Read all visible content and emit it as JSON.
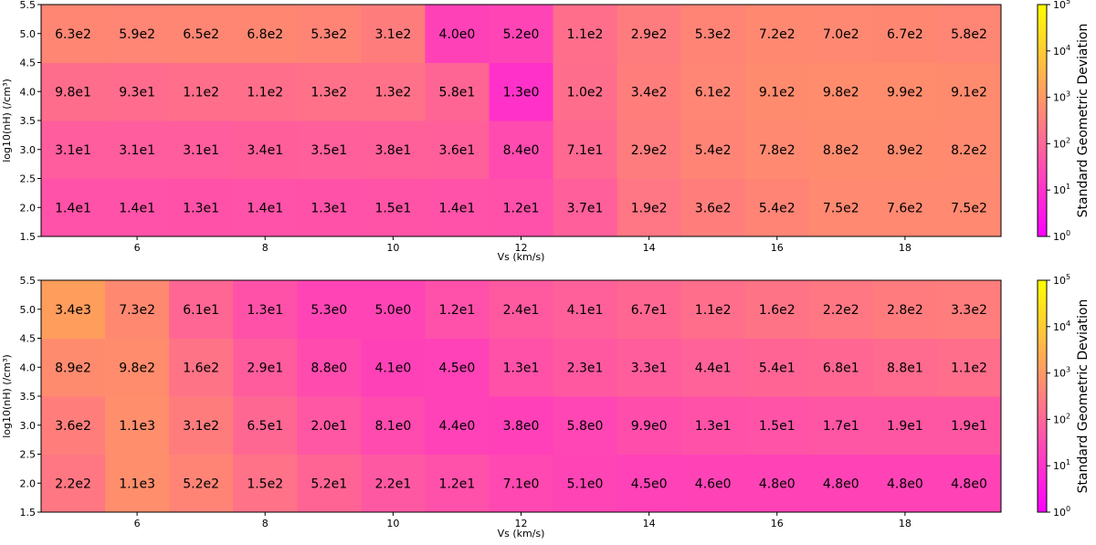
{
  "chart_data": [
    {
      "type": "heatmap",
      "xlabel": "Vs (km/s)",
      "ylabel": "log10(nH) (/cm³)",
      "x": [
        5,
        6,
        7,
        8,
        9,
        10,
        11,
        12,
        13,
        14,
        15,
        16,
        17,
        18,
        19
      ],
      "y": [
        2.0,
        3.0,
        4.0,
        5.0
      ],
      "xticks": [
        "6",
        "8",
        "10",
        "12",
        "14",
        "16",
        "18"
      ],
      "xtick_values": [
        6,
        8,
        10,
        12,
        14,
        16,
        18
      ],
      "yticks": [
        "1.5",
        "2.0",
        "2.5",
        "3.0",
        "3.5",
        "4.0",
        "4.5",
        "5.0",
        "5.5"
      ],
      "ytick_values": [
        1.5,
        2.0,
        2.5,
        3.0,
        3.5,
        4.0,
        4.5,
        5.0,
        5.5
      ],
      "xlim": [
        4.5,
        19.5
      ],
      "ylim": [
        1.5,
        5.5
      ],
      "labels": [
        [
          "1.4e1",
          "1.4e1",
          "1.3e1",
          "1.4e1",
          "1.3e1",
          "1.5e1",
          "1.4e1",
          "1.2e1",
          "3.7e1",
          "1.9e2",
          "3.6e2",
          "5.4e2",
          "7.5e2",
          "7.6e2",
          "7.5e2"
        ],
        [
          "3.1e1",
          "3.1e1",
          "3.1e1",
          "3.4e1",
          "3.5e1",
          "3.8e1",
          "3.6e1",
          "8.4e0",
          "7.1e1",
          "2.9e2",
          "5.4e2",
          "7.8e2",
          "8.8e2",
          "8.9e2",
          "8.2e2"
        ],
        [
          "9.8e1",
          "9.3e1",
          "1.1e2",
          "1.1e2",
          "1.3e2",
          "1.3e2",
          "5.8e1",
          "1.3e0",
          "1.0e2",
          "3.4e2",
          "6.1e2",
          "9.1e2",
          "9.8e2",
          "9.9e2",
          "9.1e2"
        ],
        [
          "6.3e2",
          "5.9e2",
          "6.5e2",
          "6.8e2",
          "5.3e2",
          "3.1e2",
          "4.0e0",
          "5.2e0",
          "1.1e2",
          "2.9e2",
          "5.3e2",
          "7.2e2",
          "7.0e2",
          "6.7e2",
          "5.8e2"
        ]
      ],
      "colorbar": {
        "label": "Standard Geometric Deviation",
        "scale": "log",
        "range": [
          1,
          100000
        ],
        "ticks": [
          "10",
          "10",
          "10",
          "10",
          "10",
          "10"
        ],
        "exponents": [
          "0",
          "1",
          "2",
          "3",
          "4",
          "5"
        ],
        "colormap": "spring",
        "colors": [
          "#ff00ff",
          "#ffff00"
        ]
      }
    },
    {
      "type": "heatmap",
      "xlabel": "Vs (km/s)",
      "ylabel": "log10(nH) (/cm³)",
      "x": [
        5,
        6,
        7,
        8,
        9,
        10,
        11,
        12,
        13,
        14,
        15,
        16,
        17,
        18,
        19
      ],
      "y": [
        2.0,
        3.0,
        4.0,
        5.0
      ],
      "xticks": [
        "6",
        "8",
        "10",
        "12",
        "14",
        "16",
        "18"
      ],
      "xtick_values": [
        6,
        8,
        10,
        12,
        14,
        16,
        18
      ],
      "yticks": [
        "1.5",
        "2.0",
        "2.5",
        "3.0",
        "3.5",
        "4.0",
        "4.5",
        "5.0",
        "5.5"
      ],
      "ytick_values": [
        1.5,
        2.0,
        2.5,
        3.0,
        3.5,
        4.0,
        4.5,
        5.0,
        5.5
      ],
      "xlim": [
        4.5,
        19.5
      ],
      "ylim": [
        1.5,
        5.5
      ],
      "labels": [
        [
          "2.2e2",
          "1.1e3",
          "5.2e2",
          "1.5e2",
          "5.2e1",
          "2.2e1",
          "1.2e1",
          "7.1e0",
          "5.1e0",
          "4.5e0",
          "4.6e0",
          "4.8e0",
          "4.8e0",
          "4.8e0",
          "4.8e0"
        ],
        [
          "3.6e2",
          "1.1e3",
          "3.1e2",
          "6.5e1",
          "2.0e1",
          "8.1e0",
          "4.4e0",
          "3.8e0",
          "5.8e0",
          "9.9e0",
          "1.3e1",
          "1.5e1",
          "1.7e1",
          "1.9e1",
          "1.9e1"
        ],
        [
          "8.9e2",
          "9.8e2",
          "1.6e2",
          "2.9e1",
          "8.8e0",
          "4.1e0",
          "4.5e0",
          "1.3e1",
          "2.3e1",
          "3.3e1",
          "4.4e1",
          "5.4e1",
          "6.8e1",
          "8.8e1",
          "1.1e2"
        ],
        [
          "3.4e3",
          "7.3e2",
          "6.1e1",
          "1.3e1",
          "5.3e0",
          "5.0e0",
          "1.2e1",
          "2.4e1",
          "4.1e1",
          "6.7e1",
          "1.1e2",
          "1.6e2",
          "2.2e2",
          "2.8e2",
          "3.3e2"
        ]
      ],
      "colorbar": {
        "label": "Standard Geometric Deviation",
        "scale": "log",
        "range": [
          1,
          100000
        ],
        "ticks": [
          "10",
          "10",
          "10",
          "10",
          "10",
          "10"
        ],
        "exponents": [
          "0",
          "1",
          "2",
          "3",
          "4",
          "5"
        ],
        "colormap": "spring",
        "colors": [
          "#ff00ff",
          "#ffff00"
        ]
      }
    }
  ]
}
